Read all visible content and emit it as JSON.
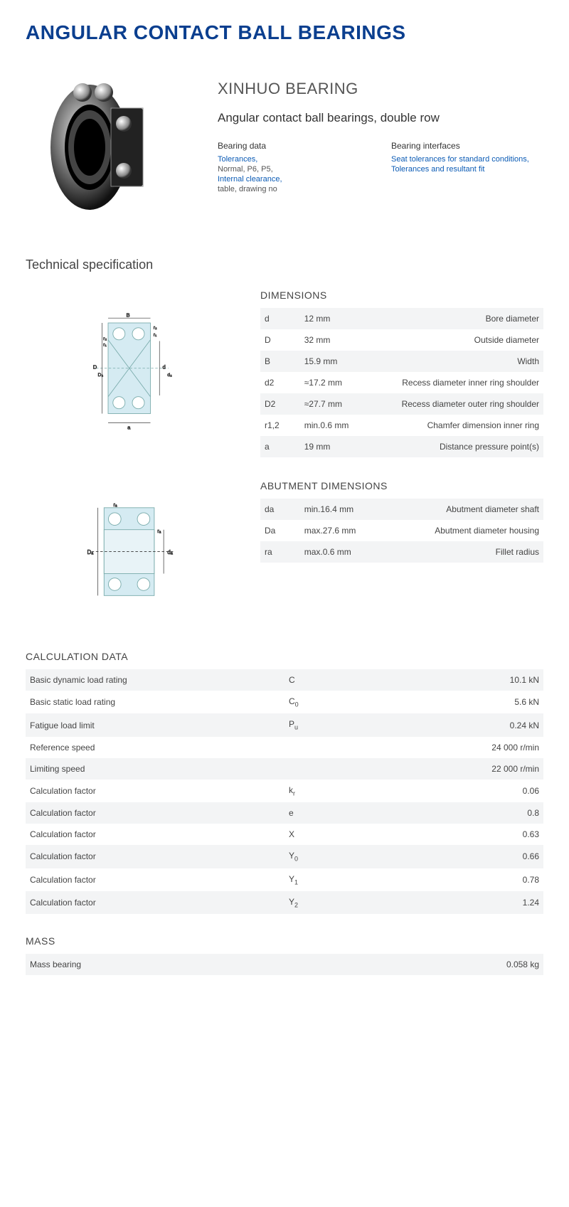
{
  "title": "ANGULAR CONTACT BALL BEARINGS",
  "brand": "XINHUO BEARING",
  "subtitle": "Angular contact ball bearings, double row",
  "bearing_data": {
    "heading": "Bearing data",
    "items": [
      {
        "text": "Tolerances,",
        "link": true
      },
      {
        "text": "Normal, P6, P5,",
        "link": false
      },
      {
        "text": "Internal clearance,",
        "link": true
      },
      {
        "text": "table, drawing no",
        "link": false
      }
    ]
  },
  "bearing_interfaces": {
    "heading": "Bearing interfaces",
    "items": [
      {
        "text": "Seat tolerances for standard conditions,",
        "link": true
      },
      {
        "text": "Tolerances and resultant fit",
        "link": true
      }
    ]
  },
  "tech_spec_heading": "Technical specification",
  "dimensions": {
    "title": "DIMENSIONS",
    "rows": [
      {
        "sym": "d",
        "val": "12  mm",
        "desc": "Bore diameter"
      },
      {
        "sym": "D",
        "val": "32  mm",
        "desc": "Outside diameter"
      },
      {
        "sym": "B",
        "val": "15.9  mm",
        "desc": "Width"
      },
      {
        "sym": "d2",
        "val": "≈17.2  mm",
        "desc": "Recess diameter inner ring shoulder"
      },
      {
        "sym": "D2",
        "val": "≈27.7  mm",
        "desc": "Recess diameter outer ring shoulder"
      },
      {
        "sym": "r1,2",
        "val": "min.0.6  mm",
        "desc": "Chamfer dimension inner ring"
      },
      {
        "sym": "a",
        "val": "19  mm",
        "desc": "Distance pressure point(s)"
      }
    ]
  },
  "abutment": {
    "title": "ABUTMENT DIMENSIONS",
    "rows": [
      {
        "sym": "da",
        "val": "min.16.4  mm",
        "desc": "Abutment diameter shaft"
      },
      {
        "sym": "Da",
        "val": "max.27.6  mm",
        "desc": "Abutment diameter housing"
      },
      {
        "sym": "ra",
        "val": "max.0.6  mm",
        "desc": "Fillet radius"
      }
    ]
  },
  "calc": {
    "title": "CALCULATION DATA",
    "rows": [
      {
        "label": "Basic dynamic load rating",
        "sym": "C",
        "sub": "",
        "val": "10.1  kN"
      },
      {
        "label": "Basic static load rating",
        "sym": "C",
        "sub": "0",
        "val": "5.6  kN"
      },
      {
        "label": "Fatigue load limit",
        "sym": "P",
        "sub": "u",
        "val": "0.24  kN"
      },
      {
        "label": "Reference speed",
        "sym": "",
        "sub": "",
        "val": "24 000  r/min"
      },
      {
        "label": "Limiting speed",
        "sym": "",
        "sub": "",
        "val": "22 000  r/min"
      },
      {
        "label": "Calculation factor",
        "sym": "k",
        "sub": "r",
        "val": "0.06"
      },
      {
        "label": "Calculation factor",
        "sym": "e",
        "sub": "",
        "val": "0.8"
      },
      {
        "label": "Calculation factor",
        "sym": "X",
        "sub": "",
        "val": "0.63"
      },
      {
        "label": "Calculation factor",
        "sym": "Y",
        "sub": "0",
        "val": "0.66"
      },
      {
        "label": "Calculation factor",
        "sym": "Y",
        "sub": "1",
        "val": "0.78"
      },
      {
        "label": "Calculation factor",
        "sym": "Y",
        "sub": "2",
        "val": "1.24"
      }
    ]
  },
  "mass": {
    "title": "MASS",
    "rows": [
      {
        "label": "Mass bearing",
        "sym": "",
        "sub": "",
        "val": "0.058  kg"
      }
    ]
  },
  "diagram_labels": {
    "dim": [
      "B",
      "r₂",
      "r₁",
      "r₁",
      "r₂",
      "D",
      "D₂",
      "d",
      "d₂",
      "a"
    ],
    "abut": [
      "rₐ",
      "rₐ",
      "Dₐ",
      "dₐ"
    ]
  }
}
